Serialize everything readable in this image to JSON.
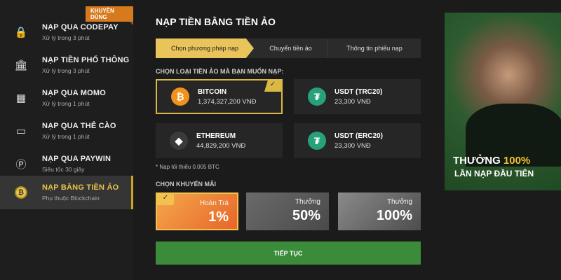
{
  "sidebar": {
    "badge": "KHUYÊN DÙNG",
    "items": [
      {
        "icon": "lock-icon",
        "title": "NẠP QUA CODEPAY",
        "sub": "Xử lý trong 3 phút"
      },
      {
        "icon": "bank-icon",
        "title": "NẠP TIỀN PHỔ THÔNG",
        "sub": "Xử lý trong 3 phút"
      },
      {
        "icon": "momo-icon",
        "title": "NẠP QUA MOMO",
        "sub": "Xử lý trong 1 phút"
      },
      {
        "icon": "card-icon",
        "title": "NẠP QUA THẺ CÀO",
        "sub": "Xử lý trong 1 phút"
      },
      {
        "icon": "paywin-icon",
        "title": "NẠP QUA PAYWIN",
        "sub": "Siêu tốc 30 giây"
      },
      {
        "icon": "bitcoin-icon",
        "title": "NẠP BẰNG TIỀN ẢO",
        "sub": "Phụ thuộc Blockchain",
        "active": true
      }
    ]
  },
  "main": {
    "title": "NẠP TIỀN BẰNG TIỀN ẢO",
    "steps": [
      "Chọn phương pháp nạp",
      "Chuyển tiền ảo",
      "Thông tin phiếu nạp"
    ],
    "coin_label": "CHỌN LOẠI TIỀN ẢO MÀ BẠN MUỐN NẠP:",
    "coins": [
      {
        "name": "BITCOIN",
        "price": "1,374,327,200 VNĐ",
        "icon": "bitcoin-icon",
        "color": "#f2911b",
        "selected": true
      },
      {
        "name": "USDT (TRC20)",
        "price": "23,300 VNĐ",
        "icon": "tether-icon",
        "color": "#26a17b"
      },
      {
        "name": "ETHEREUM",
        "price": "44,829,200 VNĐ",
        "icon": "ethereum-icon",
        "color": "#3a3a3a"
      },
      {
        "name": "USDT (ERC20)",
        "price": "23,300 VNĐ",
        "icon": "tether-icon",
        "color": "#26a17b"
      }
    ],
    "note": "* Nạp tối thiểu 0.005 BTC",
    "promo_label": "CHỌN KHUYẾN MÃI",
    "promos": [
      {
        "label": "Hoàn Trả",
        "value": "1%",
        "selected": true
      },
      {
        "label": "Thưởng",
        "value": "50%"
      },
      {
        "label": "Thưởng",
        "value": "100%"
      }
    ],
    "continue": "TIẾP TỤC"
  },
  "banner": {
    "line1a": "THƯỞNG ",
    "line1b": "100%",
    "line2": "LẦN NẠP ĐẦU TIÊN"
  },
  "colors": {
    "accent": "#e9c45b",
    "button": "#3a8c3a",
    "badge": "#d77a1e"
  }
}
